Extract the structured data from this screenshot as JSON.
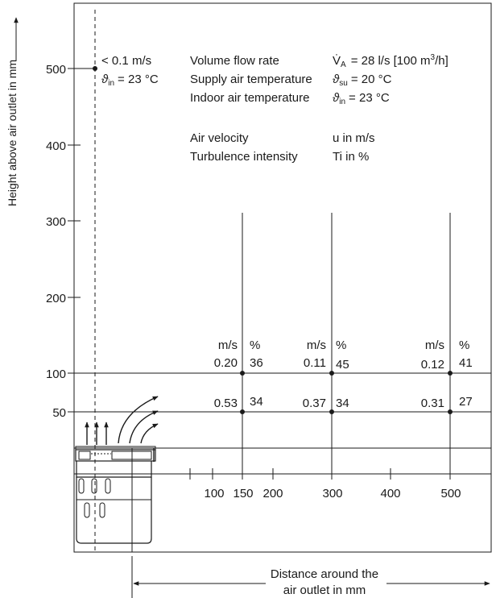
{
  "y_axis": {
    "label": "Height above air outlet in mm",
    "ticks": [
      "500",
      "400",
      "300",
      "200",
      "100",
      "50"
    ]
  },
  "x_axis": {
    "label_line1": "Distance around the",
    "label_line2": "air outlet in mm",
    "ticks": [
      "100",
      "150",
      "200",
      "300",
      "400",
      "500"
    ]
  },
  "near_point": {
    "velocity": "< 0.1 m/s",
    "temp_symbol": "ϑ",
    "temp_sub": "in",
    "temp_value": "= 23 °C"
  },
  "legend": {
    "flow_label": "Volume flow rate",
    "flow_symbol": "V̇",
    "flow_sub": "A",
    "flow_value": "= 28 l/s [100 m",
    "flow_sup": "3",
    "flow_tail": "/h]",
    "supply_label": "Supply air temperature",
    "supply_symbol": "ϑ",
    "supply_sub": "su",
    "supply_value": "= 20 °C",
    "indoor_label": "Indoor air temperature",
    "indoor_symbol": "ϑ",
    "indoor_sub": "in",
    "indoor_value": "= 23 °C",
    "velocity_label": "Air velocity",
    "velocity_value": "u in m/s",
    "turbulence_label": "Turbulence intensity",
    "turbulence_value": "Ti in %"
  },
  "measurements": [
    {
      "distance": "150",
      "unit_speed": "m/s",
      "unit_percent": "%",
      "at_100": {
        "u": "0.20",
        "ti": "36"
      },
      "at_50": {
        "u": "0.53",
        "ti": "34"
      }
    },
    {
      "distance": "300",
      "unit_speed": "m/s",
      "unit_percent": "%",
      "at_100": {
        "u": "0.11",
        "ti": "45"
      },
      "at_50": {
        "u": "0.37",
        "ti": "34"
      }
    },
    {
      "distance": "500",
      "unit_speed": "m/s",
      "unit_percent": "%",
      "at_100": {
        "u": "0.12",
        "ti": "41"
      },
      "at_50": {
        "u": "0.31",
        "ti": "27"
      }
    }
  ]
}
